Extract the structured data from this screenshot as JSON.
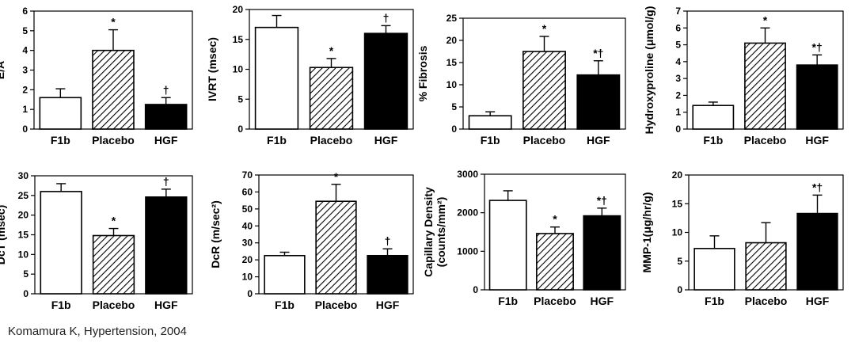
{
  "citation": "Komamura K, Hypertension, 2004",
  "colors": {
    "f1b": "#ffffff",
    "hgf": "#000000",
    "axis": "#000000"
  },
  "chart_data": [
    {
      "type": "bar",
      "categories": [
        "F1b",
        "Placebo",
        "HGF"
      ],
      "values": [
        1.6,
        4.0,
        1.25
      ],
      "errors": [
        0.45,
        1.05,
        0.35
      ],
      "marks": [
        "",
        "*",
        "†"
      ],
      "ylabel": "E/A",
      "ylim": [
        0,
        6
      ],
      "yticks": [
        0,
        1,
        2,
        3,
        4,
        5,
        6
      ],
      "grid": false
    },
    {
      "type": "bar",
      "categories": [
        "F1b",
        "Placebo",
        "HGF"
      ],
      "values": [
        17.0,
        10.3,
        16.0
      ],
      "errors": [
        2.0,
        1.5,
        1.3
      ],
      "marks": [
        "",
        "*",
        "†"
      ],
      "ylabel": "IVRT (msec)",
      "ylim": [
        0,
        20
      ],
      "yticks": [
        0,
        5,
        10,
        15,
        20
      ],
      "grid": false
    },
    {
      "type": "bar",
      "categories": [
        "F1b",
        "Placebo",
        "HGF"
      ],
      "values": [
        3.0,
        17.5,
        12.2
      ],
      "errors": [
        0.9,
        3.4,
        3.2
      ],
      "marks": [
        "",
        "*",
        "*†"
      ],
      "ylabel": "% Fibrosis",
      "ylim": [
        0,
        25
      ],
      "yticks": [
        0,
        5,
        10,
        15,
        20,
        25
      ],
      "grid": false
    },
    {
      "type": "bar",
      "categories": [
        "F1b",
        "Placebo",
        "HGF"
      ],
      "values": [
        1.4,
        5.1,
        3.8
      ],
      "errors": [
        0.2,
        0.9,
        0.6
      ],
      "marks": [
        "",
        "*",
        "*†"
      ],
      "ylabel": "Hydroxyproline (μmol/g)",
      "ylim": [
        0,
        7
      ],
      "yticks": [
        0,
        1,
        2,
        3,
        4,
        5,
        6,
        7
      ],
      "grid": false
    },
    {
      "type": "bar",
      "categories": [
        "F1b",
        "Placebo",
        "HGF"
      ],
      "values": [
        26.0,
        14.8,
        24.6
      ],
      "errors": [
        2.0,
        1.8,
        2.0
      ],
      "marks": [
        "",
        "*",
        "†"
      ],
      "ylabel": "DcT (msec)",
      "ylim": [
        0,
        30
      ],
      "yticks": [
        0,
        5,
        10,
        15,
        20,
        25,
        30
      ],
      "grid": false
    },
    {
      "type": "bar",
      "categories": [
        "F1b",
        "Placebo",
        "HGF"
      ],
      "values": [
        22.5,
        54.5,
        22.5
      ],
      "errors": [
        2.0,
        10.0,
        4.0
      ],
      "marks": [
        "",
        "*",
        "†"
      ],
      "ylabel": "DcR (m/sec²)",
      "ylim": [
        0,
        70
      ],
      "yticks": [
        0,
        10,
        20,
        30,
        40,
        50,
        60,
        70
      ],
      "grid": false
    },
    {
      "type": "bar",
      "categories": [
        "F1b",
        "Placebo",
        "HGF"
      ],
      "values": [
        2320,
        1460,
        1920
      ],
      "errors": [
        250,
        170,
        200
      ],
      "marks": [
        "",
        "*",
        "*†"
      ],
      "ylabel": "Capillary Density (counts/mm²)",
      "ylim": [
        0,
        3000
      ],
      "yticks": [
        0,
        1000,
        2000,
        3000
      ],
      "grid": false
    },
    {
      "type": "bar",
      "categories": [
        "F1b",
        "Placebo",
        "HGF"
      ],
      "values": [
        7.2,
        8.2,
        13.3
      ],
      "errors": [
        2.2,
        3.5,
        3.2
      ],
      "marks": [
        "",
        "",
        "*†"
      ],
      "ylabel": "MMP-1(μg/hr/g)",
      "ylim": [
        0,
        20
      ],
      "yticks": [
        0,
        5,
        10,
        15,
        20
      ],
      "grid": false
    }
  ]
}
